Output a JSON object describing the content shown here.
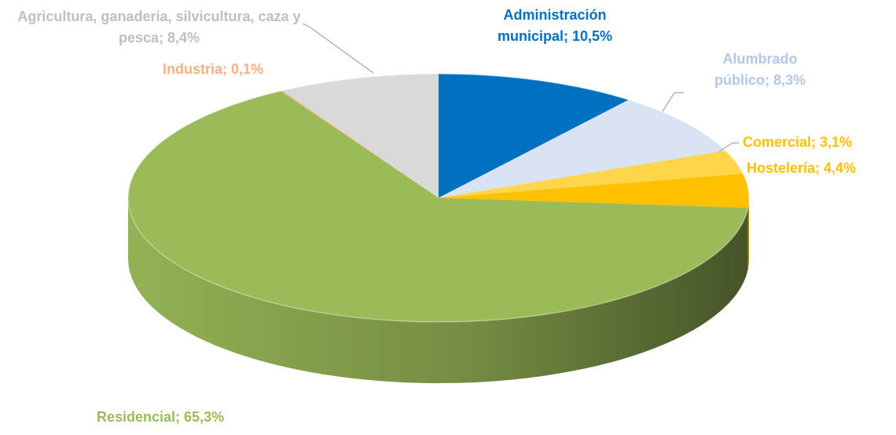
{
  "chart_data": {
    "type": "pie3d",
    "values": [
      10.5,
      8.3,
      3.1,
      4.4,
      65.3,
      0.1,
      8.4
    ],
    "value_labels": [
      "Administración municipal; 10,5%",
      "Alumbrado público; 8,3%",
      "Comercial; 3,1%",
      "Hostelería; 4,4%",
      "Residencial; 65,3%",
      "Industria; 0,1%",
      "Agricultura, ganaderia, silvicultura, caza y pesca; 8,4%"
    ],
    "colors": [
      "#0070c0",
      "#dae3f3",
      "#ffd54a",
      "#ffc000",
      "#9bbb59",
      "#f4b183",
      "#d9d9d9"
    ],
    "label_colors": [
      "#0070c0",
      "#b4c7e7",
      "#ffc000",
      "#ffc000",
      "#9bbb59",
      "#f4b183",
      "#bfbfbf"
    ]
  }
}
